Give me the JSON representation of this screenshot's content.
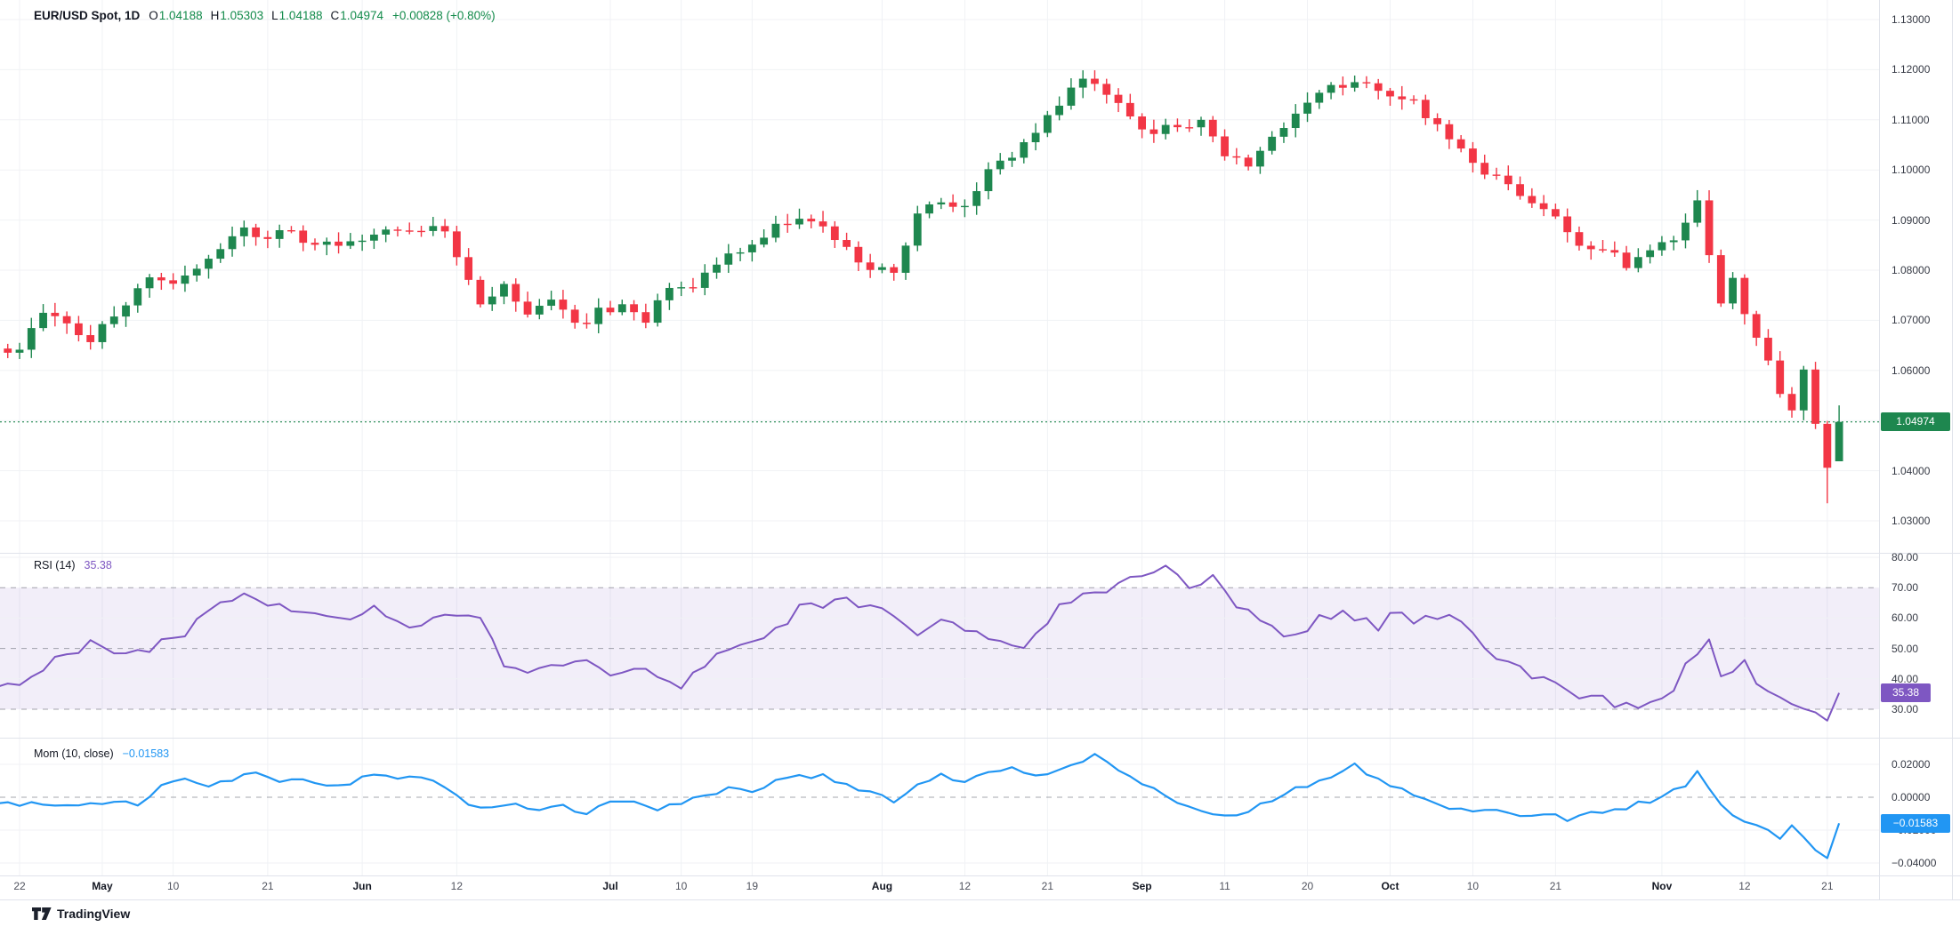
{
  "header": {
    "symbol": "EUR/USD Spot, 1D",
    "ohlc": [
      {
        "key": "O",
        "value": "1.04188"
      },
      {
        "key": "H",
        "value": "1.05303"
      },
      {
        "key": "L",
        "value": "1.04188"
      },
      {
        "key": "C",
        "value": "1.04974"
      }
    ],
    "change": "+0.00828 (+0.80%)"
  },
  "panes": {
    "price": {
      "badge": "1.04974"
    },
    "rsi": {
      "label": "RSI (14)",
      "value": "35.38",
      "badge": "35.38"
    },
    "mom": {
      "label": "Mom (10, close)",
      "value": "−0.01583",
      "badge": "−0.01583"
    }
  },
  "footer": {
    "brand": "TradingView"
  },
  "colors": {
    "up": "#1e874f",
    "uptxt": "#128a4a",
    "down": "#f23645",
    "rsi": "#7e57c2",
    "rsiband": "rgba(126,87,194,0.10)",
    "mom": "#2196f3",
    "grid": "#f0f2f5",
    "sep": "#e0e3eb",
    "dash": "#6a6d78",
    "text": "#131722",
    "tick": "#363a45",
    "day": "#50535e"
  },
  "chart_data": {
    "type": "candlestick",
    "symbol": "EUR/USD Spot",
    "interval": "1D",
    "legend_position": "top-left",
    "grid": true,
    "price_axis": {
      "range": [
        1.03,
        1.134
      ],
      "ticks": [
        {
          "label": "1.13000",
          "value": 1.13
        },
        {
          "label": "1.12000",
          "value": 1.12
        },
        {
          "label": "1.11000",
          "value": 1.11
        },
        {
          "label": "1.10000",
          "value": 1.1
        },
        {
          "label": "1.09000",
          "value": 1.09
        },
        {
          "label": "1.08000",
          "value": 1.08
        },
        {
          "label": "1.07000",
          "value": 1.07
        },
        {
          "label": "1.06000",
          "value": 1.06
        },
        {
          "label": "1.04000",
          "value": 1.04
        },
        {
          "label": "1.03000",
          "value": 1.03
        }
      ],
      "last_price_line": 1.04974
    },
    "rsi_axis": {
      "range": [
        25,
        82
      ],
      "ticks": [
        {
          "label": "80.00",
          "value": 80
        },
        {
          "label": "70.00",
          "value": 70
        },
        {
          "label": "60.00",
          "value": 60
        },
        {
          "label": "50.00",
          "value": 50
        },
        {
          "label": "40.00",
          "value": 40
        },
        {
          "label": "30.00",
          "value": 30
        }
      ]
    },
    "mom_axis": {
      "range": [
        -0.045,
        0.028
      ],
      "ticks": [
        {
          "label": "0.02000",
          "value": 0.02
        },
        {
          "label": "0.00000",
          "value": 0.0
        },
        {
          "label": "−0.02000",
          "value": -0.02
        },
        {
          "label": "−0.04000",
          "value": -0.04
        }
      ]
    },
    "time_axis": [
      {
        "label": "22",
        "bar": 0
      },
      {
        "label": "May",
        "bar": 7,
        "bold": true
      },
      {
        "label": "10",
        "bar": 13
      },
      {
        "label": "21",
        "bar": 21
      },
      {
        "label": "Jun",
        "bar": 29,
        "bold": true
      },
      {
        "label": "12",
        "bar": 37
      },
      {
        "label": "Jul",
        "bar": 50,
        "bold": true
      },
      {
        "label": "10",
        "bar": 56
      },
      {
        "label": "19",
        "bar": 62
      },
      {
        "label": "Aug",
        "bar": 73,
        "bold": true
      },
      {
        "label": "12",
        "bar": 80
      },
      {
        "label": "21",
        "bar": 87
      },
      {
        "label": "Sep",
        "bar": 95,
        "bold": true
      },
      {
        "label": "11",
        "bar": 102
      },
      {
        "label": "20",
        "bar": 109
      },
      {
        "label": "Oct",
        "bar": 116,
        "bold": true
      },
      {
        "label": "10",
        "bar": 123
      },
      {
        "label": "21",
        "bar": 130
      },
      {
        "label": "Nov",
        "bar": 139,
        "bold": true
      },
      {
        "label": "12",
        "bar": 146
      },
      {
        "label": "21",
        "bar": 153
      }
    ],
    "candles": {
      "bars": 155,
      "last": {
        "o": 1.04188,
        "h": 1.05303,
        "l": 1.04188,
        "c": 1.04974
      },
      "deep_low": {
        "bar": 153,
        "price": 1.0335
      },
      "close_anchors": [
        [
          0,
          1.0635
        ],
        [
          2,
          1.0715
        ],
        [
          4,
          1.0695
        ],
        [
          6,
          1.066
        ],
        [
          8,
          1.0715
        ],
        [
          11,
          1.078
        ],
        [
          13,
          1.0765
        ],
        [
          16,
          1.082
        ],
        [
          19,
          1.0885
        ],
        [
          21,
          1.0865
        ],
        [
          23,
          1.0875
        ],
        [
          25,
          1.0845
        ],
        [
          28,
          1.0855
        ],
        [
          30,
          1.0865
        ],
        [
          32,
          1.089
        ],
        [
          34,
          1.0875
        ],
        [
          36,
          1.088
        ],
        [
          38,
          1.0785
        ],
        [
          39,
          1.074
        ],
        [
          41,
          1.0775
        ],
        [
          43,
          1.0715
        ],
        [
          45,
          1.0735
        ],
        [
          47,
          1.069
        ],
        [
          49,
          1.0715
        ],
        [
          51,
          1.0735
        ],
        [
          53,
          1.0705
        ],
        [
          55,
          1.0755
        ],
        [
          57,
          1.0775
        ],
        [
          59,
          1.0815
        ],
        [
          61,
          1.0845
        ],
        [
          64,
          1.089
        ],
        [
          66,
          1.0895
        ],
        [
          67,
          1.0905
        ],
        [
          69,
          1.0855
        ],
        [
          71,
          1.082
        ],
        [
          74,
          1.0785
        ],
        [
          76,
          1.091
        ],
        [
          78,
          1.0945
        ],
        [
          80,
          1.0925
        ],
        [
          82,
          1.101
        ],
        [
          84,
          1.1035
        ],
        [
          86,
          1.108
        ],
        [
          88,
          1.1125
        ],
        [
          90,
          1.1185
        ],
        [
          92,
          1.116
        ],
        [
          94,
          1.1105
        ],
        [
          96,
          1.1075
        ],
        [
          98,
          1.1085
        ],
        [
          100,
          1.1105
        ],
        [
          102,
          1.1035
        ],
        [
          104,
          1.1015
        ],
        [
          106,
          1.1075
        ],
        [
          108,
          1.1105
        ],
        [
          110,
          1.1155
        ],
        [
          112,
          1.1165
        ],
        [
          113,
          1.1185
        ],
        [
          115,
          1.1165
        ],
        [
          118,
          1.1135
        ],
        [
          120,
          1.1085
        ],
        [
          122,
          1.1035
        ],
        [
          124,
          1.0995
        ],
        [
          126,
          1.0965
        ],
        [
          128,
          1.0935
        ],
        [
          130,
          1.0905
        ],
        [
          132,
          1.0855
        ],
        [
          134,
          1.0835
        ],
        [
          136,
          1.0815
        ],
        [
          138,
          1.0835
        ],
        [
          140,
          1.0855
        ],
        [
          141,
          1.0885
        ],
        [
          142,
          1.093
        ],
        [
          144,
          1.0725
        ],
        [
          145,
          1.0775
        ],
        [
          146,
          1.0715
        ],
        [
          147,
          1.0655
        ],
        [
          148,
          1.0615
        ],
        [
          149,
          1.0555
        ],
        [
          150,
          1.0525
        ],
        [
          151,
          1.0595
        ],
        [
          152,
          1.0485
        ],
        [
          153,
          1.0405
        ],
        [
          154,
          1.04974
        ]
      ]
    },
    "rsi": {
      "period": 14,
      "last": 35.38,
      "band": [
        30,
        70
      ],
      "dashed_levels": [
        70,
        50,
        30
      ],
      "anchors": [
        [
          0,
          37
        ],
        [
          3,
          46
        ],
        [
          6,
          52
        ],
        [
          8,
          49
        ],
        [
          10,
          48
        ],
        [
          12,
          52
        ],
        [
          14,
          55
        ],
        [
          16,
          62
        ],
        [
          18,
          67
        ],
        [
          20,
          66
        ],
        [
          22,
          64
        ],
        [
          25,
          61
        ],
        [
          27,
          60
        ],
        [
          30,
          63
        ],
        [
          33,
          57
        ],
        [
          36,
          62
        ],
        [
          39,
          59
        ],
        [
          41,
          45
        ],
        [
          44,
          42
        ],
        [
          47,
          47
        ],
        [
          50,
          40
        ],
        [
          53,
          43
        ],
        [
          56,
          38
        ],
        [
          59,
          48
        ],
        [
          63,
          52
        ],
        [
          66,
          63
        ],
        [
          70,
          66
        ],
        [
          73,
          62
        ],
        [
          76,
          55
        ],
        [
          79,
          60
        ],
        [
          82,
          52
        ],
        [
          85,
          49
        ],
        [
          88,
          63
        ],
        [
          91,
          69
        ],
        [
          94,
          72
        ],
        [
          97,
          77
        ],
        [
          99,
          71
        ],
        [
          101,
          74
        ],
        [
          103,
          65
        ],
        [
          106,
          57
        ],
        [
          108,
          54
        ],
        [
          110,
          60
        ],
        [
          112,
          62
        ],
        [
          115,
          57
        ],
        [
          116,
          62
        ],
        [
          118,
          59
        ],
        [
          121,
          61
        ],
        [
          123,
          54
        ],
        [
          125,
          46
        ],
        [
          128,
          41
        ],
        [
          130,
          38
        ],
        [
          132,
          35
        ],
        [
          134,
          33
        ],
        [
          137,
          30
        ],
        [
          138,
          32
        ],
        [
          140,
          37
        ],
        [
          141,
          44
        ],
        [
          143,
          54
        ],
        [
          144,
          40
        ],
        [
          146,
          45
        ],
        [
          147,
          38
        ],
        [
          149,
          34
        ],
        [
          150,
          32
        ],
        [
          152,
          29
        ],
        [
          153,
          27
        ],
        [
          154,
          35.38
        ]
      ]
    },
    "mom": {
      "period": 10,
      "source": "close",
      "last": -0.01583,
      "dashed_levels": [
        0
      ],
      "anchors": [
        [
          10,
          -0.004
        ],
        [
          12,
          0.006
        ],
        [
          14,
          0.012
        ],
        [
          16,
          0.007
        ],
        [
          18,
          0.011
        ],
        [
          20,
          0.015
        ],
        [
          22,
          0.009
        ],
        [
          24,
          0.012
        ],
        [
          26,
          0.006
        ],
        [
          28,
          0.009
        ],
        [
          30,
          0.014
        ],
        [
          32,
          0.01
        ],
        [
          34,
          0.013
        ],
        [
          36,
          0.006
        ],
        [
          38,
          -0.003
        ],
        [
          40,
          -0.007
        ],
        [
          42,
          -0.003
        ],
        [
          44,
          -0.009
        ],
        [
          46,
          -0.005
        ],
        [
          48,
          -0.01
        ],
        [
          50,
          -0.004
        ],
        [
          52,
          -0.002
        ],
        [
          54,
          -0.007
        ],
        [
          56,
          -0.003
        ],
        [
          58,
          0.002
        ],
        [
          60,
          0.005
        ],
        [
          62,
          0.002
        ],
        [
          64,
          0.009
        ],
        [
          66,
          0.012
        ],
        [
          68,
          0.013
        ],
        [
          70,
          0.008
        ],
        [
          72,
          0.003
        ],
        [
          74,
          -0.002
        ],
        [
          76,
          0.008
        ],
        [
          78,
          0.014
        ],
        [
          80,
          0.009
        ],
        [
          82,
          0.016
        ],
        [
          84,
          0.018
        ],
        [
          86,
          0.013
        ],
        [
          88,
          0.018
        ],
        [
          90,
          0.023
        ],
        [
          91,
          0.026
        ],
        [
          93,
          0.015
        ],
        [
          95,
          0.008
        ],
        [
          97,
          0.001
        ],
        [
          99,
          -0.006
        ],
        [
          101,
          -0.009
        ],
        [
          103,
          -0.012
        ],
        [
          105,
          -0.005
        ],
        [
          107,
          0.003
        ],
        [
          109,
          0.007
        ],
        [
          111,
          0.012
        ],
        [
          113,
          0.019
        ],
        [
          115,
          0.01
        ],
        [
          117,
          0.004
        ],
        [
          119,
          -0.001
        ],
        [
          121,
          -0.006
        ],
        [
          123,
          -0.01
        ],
        [
          125,
          -0.007
        ],
        [
          127,
          -0.012
        ],
        [
          129,
          -0.009
        ],
        [
          131,
          -0.013
        ],
        [
          133,
          -0.01
        ],
        [
          135,
          -0.008
        ],
        [
          137,
          -0.004
        ],
        [
          139,
          0.0
        ],
        [
          141,
          0.008
        ],
        [
          142,
          0.016
        ],
        [
          143,
          0.006
        ],
        [
          144,
          -0.006
        ],
        [
          146,
          -0.015
        ],
        [
          148,
          -0.021
        ],
        [
          149,
          -0.026
        ],
        [
          150,
          -0.018
        ],
        [
          151,
          -0.024
        ],
        [
          152,
          -0.031
        ],
        [
          153,
          -0.036
        ],
        [
          154,
          -0.01583
        ]
      ]
    }
  }
}
